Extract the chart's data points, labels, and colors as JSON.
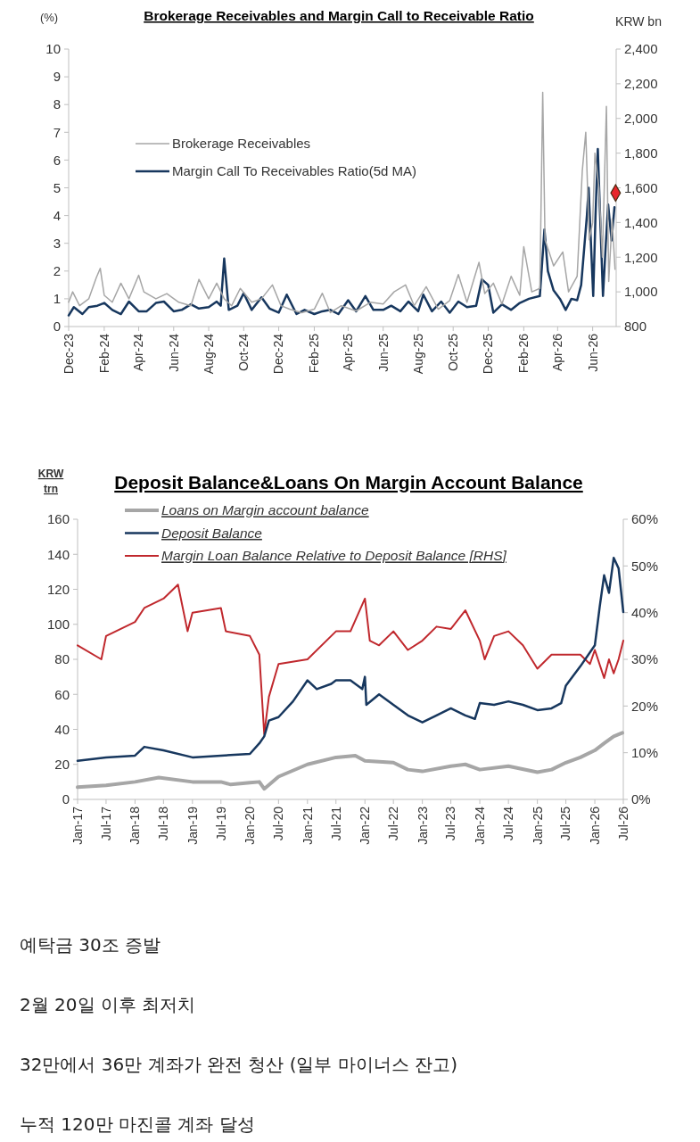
{
  "chart_data": [
    {
      "type": "line",
      "title": "Brokerage Receivables and Margin Call to Receivable Ratio",
      "ylabel": "(%)",
      "y2label": "KRW bn",
      "legend": "top left",
      "xlim": [
        "2023-12-01",
        "2026-07-12"
      ],
      "xticks": [
        {
          "value": "2023-12-01",
          "label": "Dec-23"
        },
        {
          "value": "2024-02-01",
          "label": "Feb-24"
        },
        {
          "value": "2024-04-01",
          "label": "Apr-24"
        },
        {
          "value": "2024-06-01",
          "label": "Jun-24"
        },
        {
          "value": "2024-08-01",
          "label": "Aug-24"
        },
        {
          "value": "2024-10-01",
          "label": "Oct-24"
        },
        {
          "value": "2024-12-01",
          "label": "Dec-24"
        },
        {
          "value": "2025-02-01",
          "label": "Feb-25"
        },
        {
          "value": "2025-04-01",
          "label": "Apr-25"
        },
        {
          "value": "2025-06-01",
          "label": "Jun-25"
        },
        {
          "value": "2025-08-01",
          "label": "Aug-25"
        },
        {
          "value": "2025-10-01",
          "label": "Oct-25"
        },
        {
          "value": "2025-12-01",
          "label": "Dec-25"
        },
        {
          "value": "2026-02-01",
          "label": "Feb-26"
        },
        {
          "value": "2026-04-01",
          "label": "Apr-26"
        },
        {
          "value": "2026-06-01",
          "label": "Jun-26"
        }
      ],
      "ylim": [
        0,
        10
      ],
      "yticks": [
        0,
        1,
        2,
        3,
        4,
        5,
        6,
        7,
        8,
        9,
        10
      ],
      "y2lim": [
        800,
        2400
      ],
      "y2ticks": [
        800,
        {
          "value": 1000,
          "label": "1,000"
        },
        {
          "value": 1200,
          "label": "1,200"
        },
        {
          "value": 1400,
          "label": "1,400"
        },
        {
          "value": 1600,
          "label": "1,600"
        },
        {
          "value": 1800,
          "label": "1,800"
        },
        {
          "value": 2000,
          "label": "2,000"
        },
        {
          "value": 2200,
          "label": "2,200"
        },
        {
          "value": 2400,
          "label": "2,400"
        }
      ],
      "series": [
        {
          "name": "Brokerage Receivables",
          "color": "#a6a6a6",
          "axis": "y2",
          "x": [
            "2023-12-01",
            "2023-12-08",
            "2023-12-20",
            "2024-01-05",
            "2024-01-18",
            "2024-01-25",
            "2024-02-01",
            "2024-02-15",
            "2024-03-01",
            "2024-03-15",
            "2024-04-01",
            "2024-04-10",
            "2024-05-01",
            "2024-05-20",
            "2024-06-10",
            "2024-07-01",
            "2024-07-15",
            "2024-08-01",
            "2024-08-15",
            "2024-08-28",
            "2024-09-10",
            "2024-09-25",
            "2024-10-15",
            "2024-11-01",
            "2024-11-20",
            "2024-12-05",
            "2024-12-20",
            "2025-01-10",
            "2025-02-01",
            "2025-02-15",
            "2025-03-01",
            "2025-03-20",
            "2025-04-15",
            "2025-05-10",
            "2025-06-01",
            "2025-06-20",
            "2025-07-10",
            "2025-07-25",
            "2025-08-15",
            "2025-09-05",
            "2025-09-25",
            "2025-10-10",
            "2025-10-25",
            "2025-11-15",
            "2025-11-25",
            "2025-12-10",
            "2025-12-25",
            "2026-01-10",
            "2026-01-25",
            "2026-02-01",
            "2026-02-15",
            "2026-03-01",
            "2026-03-06",
            "2026-03-10",
            "2026-03-25",
            "2026-04-10",
            "2026-04-20",
            "2026-05-05",
            "2026-05-14",
            "2026-05-20",
            "2026-05-26",
            "2026-06-01",
            "2026-06-05",
            "2026-06-12",
            "2026-06-18",
            "2026-06-25",
            "2026-06-29",
            "2026-07-05",
            "2026-07-10"
          ],
          "values": [
            940,
            1000,
            920,
            960,
            1080,
            1136,
            980,
            940,
            1050,
            960,
            1096,
            1000,
            960,
            990,
            940,
            920,
            1072,
            960,
            1050,
            960,
            920,
            1020,
            940,
            960,
            1040,
            920,
            900,
            880,
            900,
            992,
            880,
            920,
            890,
            940,
            930,
            1000,
            1040,
            920,
            1030,
            900,
            950,
            1100,
            940,
            1170,
            990,
            1050,
            930,
            1090,
            980,
            1260,
            1000,
            1020,
            2150,
            1300,
            1150,
            1230,
            1000,
            1090,
            1700,
            1920,
            1300,
            1400,
            1800,
            1600,
            1200,
            2070,
            1060,
            1420,
            1130
          ]
        },
        {
          "name": "Margin Call To Receivables Ratio(5d MA)",
          "color": "#17375e",
          "x": [
            "2023-12-01",
            "2023-12-10",
            "2023-12-25",
            "2024-01-05",
            "2024-01-20",
            "2024-02-01",
            "2024-02-15",
            "2024-03-01",
            "2024-03-15",
            "2024-04-01",
            "2024-04-15",
            "2024-05-01",
            "2024-05-15",
            "2024-06-01",
            "2024-06-15",
            "2024-07-01",
            "2024-07-15",
            "2024-08-01",
            "2024-08-15",
            "2024-08-22",
            "2024-08-28",
            "2024-09-05",
            "2024-09-20",
            "2024-10-01",
            "2024-10-15",
            "2024-11-01",
            "2024-11-15",
            "2024-12-01",
            "2024-12-15",
            "2025-01-01",
            "2025-01-15",
            "2025-02-01",
            "2025-02-15",
            "2025-03-01",
            "2025-03-15",
            "2025-04-01",
            "2025-04-15",
            "2025-05-01",
            "2025-05-15",
            "2025-06-01",
            "2025-06-15",
            "2025-07-01",
            "2025-07-15",
            "2025-08-01",
            "2025-08-10",
            "2025-08-25",
            "2025-09-10",
            "2025-09-25",
            "2025-10-10",
            "2025-10-25",
            "2025-11-10",
            "2025-11-20",
            "2025-12-01",
            "2025-12-10",
            "2025-12-25",
            "2026-01-10",
            "2026-01-25",
            "2026-02-10",
            "2026-03-01",
            "2026-03-09",
            "2026-03-15",
            "2026-03-25",
            "2026-04-05",
            "2026-04-15",
            "2026-04-25",
            "2026-05-05",
            "2026-05-12",
            "2026-05-18",
            "2026-05-22",
            "2026-05-25",
            "2026-05-28",
            "2026-06-02",
            "2026-06-06",
            "2026-06-10",
            "2026-06-14",
            "2026-06-19",
            "2026-06-24",
            "2026-06-28",
            "2026-07-04",
            "2026-07-09"
          ],
          "values": [
            0.4,
            0.7,
            0.45,
            0.7,
            0.75,
            0.85,
            0.6,
            0.45,
            0.9,
            0.55,
            0.55,
            0.85,
            0.9,
            0.55,
            0.6,
            0.8,
            0.65,
            0.7,
            0.9,
            0.75,
            2.45,
            0.6,
            0.75,
            1.2,
            0.6,
            1.05,
            0.65,
            0.5,
            1.15,
            0.45,
            0.6,
            0.45,
            0.55,
            0.6,
            0.45,
            0.95,
            0.55,
            1.1,
            0.6,
            0.6,
            0.75,
            0.55,
            0.9,
            0.55,
            1.15,
            0.55,
            0.9,
            0.5,
            0.9,
            0.7,
            0.75,
            1.7,
            1.5,
            0.5,
            0.8,
            0.6,
            0.85,
            1.0,
            1.1,
            3.5,
            2.0,
            1.3,
            1.0,
            0.6,
            1.0,
            0.95,
            1.5,
            3.0,
            4.0,
            5.0,
            3.5,
            1.1,
            4.0,
            6.4,
            4.0,
            1.1,
            3.0,
            4.4,
            3.1,
            4.3
          ]
        },
        {
          "type": "scatter",
          "color": "#e8262b",
          "axis": "y2",
          "marker": "diamond",
          "x": [
            "2026-07-11"
          ],
          "values": [
            1570
          ]
        }
      ]
    },
    {
      "type": "line",
      "title": "Deposit Balance&Loans On Margin Account Balance",
      "ylabel": "KRW trn",
      "legend": "top left",
      "xlim": [
        "2017-01-01",
        "2026-07-01"
      ],
      "xticks": [
        {
          "value": "2017-01-01",
          "label": "Jan-17"
        },
        {
          "value": "2017-07-01",
          "label": "Jul-17"
        },
        {
          "value": "2018-01-01",
          "label": "Jan-18"
        },
        {
          "value": "2018-07-01",
          "label": "Jul-18"
        },
        {
          "value": "2019-01-01",
          "label": "Jan-19"
        },
        {
          "value": "2019-07-01",
          "label": "Jul-19"
        },
        {
          "value": "2020-01-01",
          "label": "Jan-20"
        },
        {
          "value": "2020-07-01",
          "label": "Jul-20"
        },
        {
          "value": "2021-01-01",
          "label": "Jan-21"
        },
        {
          "value": "2021-07-01",
          "label": "Jul-21"
        },
        {
          "value": "2022-01-01",
          "label": "Jan-22"
        },
        {
          "value": "2022-07-01",
          "label": "Jul-22"
        },
        {
          "value": "2023-01-01",
          "label": "Jan-23"
        },
        {
          "value": "2023-07-01",
          "label": "Jul-23"
        },
        {
          "value": "2024-01-01",
          "label": "Jan-24"
        },
        {
          "value": "2024-07-01",
          "label": "Jul-24"
        },
        {
          "value": "2025-01-01",
          "label": "Jan-25"
        },
        {
          "value": "2025-07-01",
          "label": "Jul-25"
        },
        {
          "value": "2026-01-01",
          "label": "Jan-26"
        },
        {
          "value": "2026-07-01",
          "label": "Jul-26"
        }
      ],
      "ylim": [
        0,
        160
      ],
      "yticks": [
        0,
        20,
        40,
        60,
        80,
        100,
        120,
        140,
        160
      ],
      "y2lim": [
        0,
        60
      ],
      "y2ticks": [
        {
          "value": 0,
          "label": "0%"
        },
        {
          "value": 10,
          "label": "10%"
        },
        {
          "value": 20,
          "label": "20%"
        },
        {
          "value": 30,
          "label": "30%"
        },
        {
          "value": 40,
          "label": "40%"
        },
        {
          "value": 50,
          "label": "50%"
        },
        {
          "value": 60,
          "label": "60%"
        }
      ],
      "series": [
        {
          "name": "Loans on Margin account balance",
          "color": "#a6a6a6",
          "x": [
            "2017-01-01",
            "2017-07-01",
            "2018-01-01",
            "2018-06-01",
            "2019-01-01",
            "2019-07-01",
            "2019-09-01",
            "2020-01-01",
            "2020-03-01",
            "2020-04-01",
            "2020-07-01",
            "2021-01-01",
            "2021-07-01",
            "2021-11-01",
            "2022-01-01",
            "2022-07-01",
            "2022-10-01",
            "2023-01-01",
            "2023-07-01",
            "2023-10-01",
            "2024-01-01",
            "2024-07-01",
            "2025-01-01",
            "2025-04-01",
            "2025-07-01",
            "2025-10-01",
            "2026-01-01",
            "2026-03-01",
            "2026-05-01",
            "2026-06-25"
          ],
          "values": [
            7,
            8,
            10,
            12.5,
            10,
            10,
            8.5,
            9.5,
            10,
            6,
            13,
            20,
            24,
            25,
            22,
            21,
            17,
            16,
            19,
            20,
            17,
            19,
            15.5,
            17,
            21,
            24,
            28,
            32,
            36,
            38
          ]
        },
        {
          "name": "Deposit Balance",
          "color": "#17375e",
          "x": [
            "2017-01-01",
            "2017-07-01",
            "2018-01-01",
            "2018-03-01",
            "2018-07-01",
            "2019-01-01",
            "2019-07-01",
            "2020-01-01",
            "2020-03-01",
            "2020-04-01",
            "2020-05-01",
            "2020-07-01",
            "2020-10-01",
            "2021-01-01",
            "2021-03-01",
            "2021-06-01",
            "2021-07-01",
            "2021-10-01",
            "2021-12-15",
            "2022-01-01",
            "2022-01-10",
            "2022-04-01",
            "2022-07-01",
            "2022-10-01",
            "2023-01-01",
            "2023-04-01",
            "2023-07-01",
            "2023-10-01",
            "2023-12-01",
            "2024-01-01",
            "2024-04-01",
            "2024-07-01",
            "2024-10-01",
            "2025-01-01",
            "2025-04-01",
            "2025-06-01",
            "2025-07-01",
            "2025-10-01",
            "2026-01-01",
            "2026-02-01",
            "2026-03-01",
            "2026-04-01",
            "2026-05-01",
            "2026-06-01",
            "2026-07-01"
          ],
          "values": [
            22,
            24,
            25,
            30,
            28,
            24,
            25,
            26,
            32,
            36,
            45,
            47,
            56,
            68,
            63,
            66,
            68,
            68,
            63,
            70,
            54,
            60,
            54,
            48,
            44,
            48,
            52,
            48,
            46,
            55,
            54,
            56,
            54,
            51,
            52,
            55,
            65,
            76,
            88,
            110,
            128,
            118,
            138,
            132,
            107
          ]
        },
        {
          "name": "Margin Loan Balance Relative to Deposit Balance [RHS]",
          "color": "#c0282d",
          "axis": "y2",
          "x": [
            "2017-01-01",
            "2017-06-01",
            "2017-07-01",
            "2018-01-01",
            "2018-03-01",
            "2018-07-01",
            "2018-10-01",
            "2018-12-01",
            "2019-01-01",
            "2019-07-01",
            "2019-08-01",
            "2020-01-01",
            "2020-03-01",
            "2020-04-01",
            "2020-05-01",
            "2020-07-01",
            "2021-01-01",
            "2021-07-01",
            "2021-10-01",
            "2022-01-01",
            "2022-02-01",
            "2022-04-01",
            "2022-07-01",
            "2022-10-01",
            "2023-01-01",
            "2023-04-01",
            "2023-07-01",
            "2023-10-01",
            "2024-01-01",
            "2024-02-01",
            "2024-04-01",
            "2024-07-01",
            "2024-10-01",
            "2025-01-01",
            "2025-04-01",
            "2025-07-01",
            "2025-10-01",
            "2025-12-01",
            "2026-01-01",
            "2026-03-01",
            "2026-04-01",
            "2026-05-01",
            "2026-06-01",
            "2026-07-01"
          ],
          "values": [
            33,
            30,
            35,
            38,
            41,
            43,
            46,
            36,
            40,
            41,
            36,
            35,
            31,
            14,
            22,
            29,
            30,
            36,
            36,
            43,
            34,
            33,
            36,
            32,
            34,
            37,
            36.5,
            40.5,
            34,
            30,
            35,
            36,
            33,
            28,
            31,
            31,
            31,
            29,
            32,
            26,
            30,
            27,
            30,
            34
          ]
        }
      ]
    },
    {
      "type": "other",
      "annotations": [
        "예탁금 30조 증발",
        "2월 20일 이후 최저치",
        "32만에서 36만 계좌가 완전 청산 (일부 마이너스 잔고)",
        "누적 120만 마진콜 계좌 달성"
      ]
    }
  ]
}
